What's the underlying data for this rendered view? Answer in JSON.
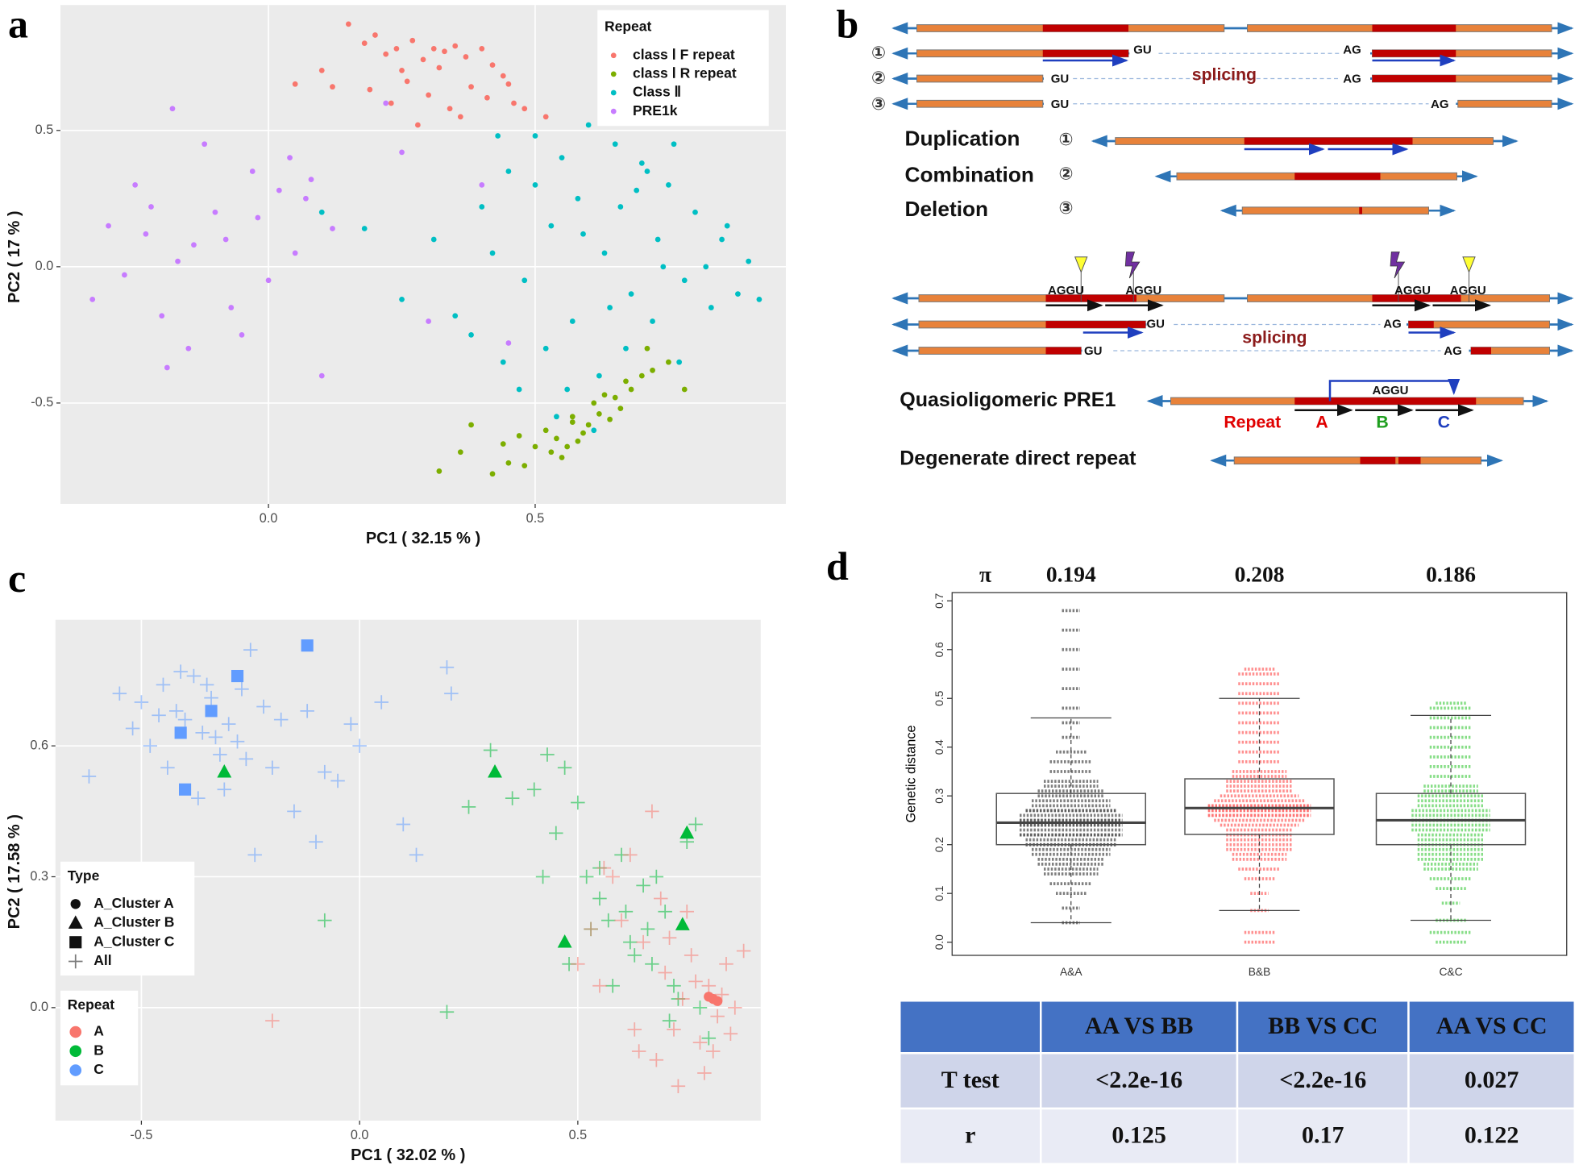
{
  "chart_data": [
    {
      "type": "scatter",
      "panel_label": "a",
      "xlabel": "PC1 ( 32.15 % )",
      "ylabel": "PC2 ( 17 % )",
      "xlim": [
        -0.39,
        0.97
      ],
      "ylim": [
        -0.87,
        0.96
      ],
      "xticks": [
        {
          "value": 0,
          "label": "0.0"
        },
        0.5
      ],
      "yticks": [
        -0.5,
        {
          "value": 0,
          "label": "0.0"
        },
        0.5
      ],
      "grid": true,
      "legend_title": "Repeat",
      "legend": "upper right",
      "series": [
        {
          "name": "class Ⅰ F repeat",
          "color": "#f8766d",
          "shape": "circle",
          "x": [
            0.15,
            0.18,
            0.2,
            0.22,
            0.24,
            0.27,
            0.29,
            0.31,
            0.33,
            0.35,
            0.37,
            0.4,
            0.42,
            0.44,
            0.19,
            0.23,
            0.26,
            0.3,
            0.34,
            0.38,
            0.41,
            0.45,
            0.48,
            0.52,
            0.1,
            0.05,
            0.12,
            0.28,
            0.36,
            0.46,
            0.25,
            0.32
          ],
          "y": [
            0.89,
            0.82,
            0.85,
            0.78,
            0.8,
            0.83,
            0.76,
            0.8,
            0.79,
            0.81,
            0.77,
            0.8,
            0.74,
            0.7,
            0.65,
            0.6,
            0.68,
            0.63,
            0.58,
            0.66,
            0.62,
            0.67,
            0.58,
            0.55,
            0.72,
            0.67,
            0.66,
            0.52,
            0.55,
            0.6,
            0.72,
            0.73
          ]
        },
        {
          "name": "class Ⅰ R repeat",
          "color": "#7cae00",
          "shape": "circle",
          "x": [
            0.32,
            0.36,
            0.38,
            0.42,
            0.45,
            0.47,
            0.5,
            0.52,
            0.54,
            0.55,
            0.57,
            0.58,
            0.6,
            0.61,
            0.63,
            0.64,
            0.66,
            0.68,
            0.7,
            0.72,
            0.75,
            0.78,
            0.56,
            0.59,
            0.62,
            0.65,
            0.53,
            0.48,
            0.44,
            0.67,
            0.71,
            0.57
          ],
          "y": [
            -0.75,
            -0.68,
            -0.58,
            -0.76,
            -0.72,
            -0.62,
            -0.66,
            -0.6,
            -0.63,
            -0.7,
            -0.55,
            -0.64,
            -0.58,
            -0.5,
            -0.47,
            -0.56,
            -0.52,
            -0.45,
            -0.4,
            -0.38,
            -0.35,
            -0.45,
            -0.66,
            -0.61,
            -0.54,
            -0.48,
            -0.68,
            -0.73,
            -0.65,
            -0.42,
            -0.3,
            -0.57
          ]
        },
        {
          "name": "Class Ⅱ",
          "color": "#00bfc4",
          "shape": "circle",
          "x": [
            0.4,
            0.45,
            0.5,
            0.55,
            0.6,
            0.65,
            0.7,
            0.75,
            0.8,
            0.85,
            0.9,
            0.42,
            0.48,
            0.53,
            0.58,
            0.63,
            0.68,
            0.73,
            0.78,
            0.83,
            0.88,
            0.92,
            0.38,
            0.44,
            0.52,
            0.57,
            0.62,
            0.67,
            0.72,
            0.77,
            0.82,
            0.47,
            0.54,
            0.61,
            0.69,
            0.76,
            0.31,
            0.25,
            0.1,
            0.18,
            0.35,
            0.5,
            0.59,
            0.66,
            0.74,
            0.86,
            0.43,
            0.56,
            0.64,
            0.71
          ],
          "y": [
            0.22,
            0.35,
            0.48,
            0.4,
            0.52,
            0.45,
            0.38,
            0.3,
            0.2,
            0.1,
            0.02,
            0.05,
            -0.05,
            0.15,
            0.25,
            0.05,
            -0.1,
            0.1,
            -0.05,
            -0.15,
            -0.1,
            -0.12,
            -0.25,
            -0.35,
            -0.3,
            -0.2,
            -0.4,
            -0.3,
            -0.2,
            -0.35,
            0.0,
            -0.45,
            -0.55,
            -0.6,
            0.28,
            0.45,
            0.1,
            -0.12,
            0.2,
            0.14,
            -0.18,
            0.3,
            0.12,
            0.22,
            0.0,
            0.15,
            0.48,
            -0.45,
            -0.15,
            0.35
          ]
        },
        {
          "name": "PRE1k",
          "color": "#c77cff",
          "shape": "circle",
          "x": [
            -0.33,
            -0.3,
            -0.27,
            -0.25,
            -0.22,
            -0.2,
            -0.18,
            -0.15,
            -0.12,
            -0.1,
            -0.08,
            -0.05,
            -0.03,
            0.0,
            0.02,
            0.05,
            0.08,
            0.1,
            -0.19,
            -0.23,
            -0.14,
            -0.07,
            0.04,
            0.12,
            0.22,
            0.25,
            0.3,
            0.4,
            0.45,
            -0.17,
            -0.02,
            0.07
          ],
          "y": [
            -0.12,
            0.15,
            -0.03,
            0.3,
            0.22,
            -0.18,
            0.58,
            -0.3,
            0.45,
            0.2,
            0.1,
            -0.25,
            0.35,
            -0.05,
            0.28,
            0.05,
            0.32,
            -0.4,
            -0.37,
            0.12,
            0.08,
            -0.15,
            0.4,
            0.14,
            0.6,
            0.42,
            -0.2,
            0.3,
            -0.28,
            0.02,
            0.18,
            0.25
          ]
        }
      ]
    },
    {
      "type": "scatter",
      "panel_label": "c",
      "xlabel": "PC1 ( 32.02 % )",
      "ylabel": "PC2 ( 17.58 % )",
      "xlim": [
        -0.697,
        0.919
      ],
      "ylim": [
        -0.259,
        0.889
      ],
      "xticks": [
        -0.5,
        {
          "value": 0,
          "label": "0.0"
        },
        0.5
      ],
      "yticks": [
        {
          "value": 0,
          "label": "0.0"
        },
        0.3,
        0.6
      ],
      "grid": true,
      "legend": "center left",
      "type_legend": {
        "title": "Type",
        "entries": [
          {
            "name": "A_Cluster A",
            "shape": "circle"
          },
          {
            "name": "A_Cluster B",
            "shape": "triangle"
          },
          {
            "name": "A_Cluster C",
            "shape": "square"
          },
          {
            "name": "All",
            "shape": "cross"
          }
        ]
      },
      "repeat_legend": {
        "title": "Repeat",
        "entries": [
          {
            "name": "A",
            "color": "#f8766d"
          },
          {
            "name": "B",
            "color": "#00ba38"
          },
          {
            "name": "C",
            "color": "#619cff"
          }
        ]
      },
      "series": [
        {
          "color": "#619cff",
          "shape": "cross",
          "x": [
            -0.62,
            -0.55,
            -0.52,
            -0.5,
            -0.48,
            -0.45,
            -0.42,
            -0.4,
            -0.38,
            -0.36,
            -0.34,
            -0.32,
            -0.3,
            -0.28,
            -0.25,
            -0.22,
            -0.2,
            -0.15,
            -0.1,
            -0.05,
            0.0,
            0.05,
            0.1,
            0.2,
            0.21,
            -0.44,
            -0.37,
            -0.33,
            -0.27,
            -0.24,
            -0.18,
            -0.08,
            -0.02,
            0.13,
            -0.46,
            -0.31,
            -0.26,
            -0.12,
            -0.35,
            -0.41
          ],
          "y": [
            0.53,
            0.72,
            0.64,
            0.7,
            0.6,
            0.74,
            0.68,
            0.66,
            0.76,
            0.63,
            0.71,
            0.58,
            0.65,
            0.61,
            0.82,
            0.69,
            0.55,
            0.45,
            0.38,
            0.52,
            0.6,
            0.7,
            0.42,
            0.78,
            0.72,
            0.55,
            0.48,
            0.62,
            0.73,
            0.35,
            0.66,
            0.54,
            0.65,
            0.35,
            0.67,
            0.5,
            0.57,
            0.68,
            0.74,
            0.77
          ]
        },
        {
          "color": "#00ba38",
          "shape": "cross",
          "x": [
            0.3,
            0.35,
            0.4,
            0.43,
            0.45,
            0.47,
            0.5,
            0.52,
            0.55,
            0.57,
            0.6,
            0.62,
            0.65,
            0.67,
            0.7,
            0.72,
            0.75,
            0.78,
            0.8,
            0.48,
            0.53,
            0.58,
            0.63,
            0.68,
            0.73,
            0.77,
            0.25,
            0.2,
            -0.08,
            0.42,
            0.55,
            0.66,
            0.71,
            0.61
          ],
          "y": [
            0.59,
            0.48,
            0.5,
            0.58,
            0.4,
            0.55,
            0.47,
            0.3,
            0.25,
            0.2,
            0.35,
            0.15,
            0.28,
            0.1,
            0.22,
            0.05,
            0.38,
            0.0,
            -0.07,
            0.1,
            0.18,
            0.05,
            0.12,
            0.3,
            0.02,
            0.42,
            0.46,
            -0.01,
            0.2,
            0.3,
            0.32,
            0.18,
            -0.03,
            0.22
          ]
        },
        {
          "color": "#f8766d",
          "shape": "cross",
          "x": [
            0.5,
            0.55,
            0.58,
            0.6,
            0.62,
            0.65,
            0.67,
            0.7,
            0.72,
            0.74,
            0.76,
            0.78,
            0.8,
            0.82,
            0.84,
            0.86,
            0.88,
            0.63,
            0.68,
            0.73,
            0.77,
            0.81,
            0.85,
            0.69,
            0.71,
            0.56,
            0.64,
            0.75,
            0.83,
            -0.2,
            0.53,
            0.79
          ],
          "y": [
            0.1,
            0.05,
            0.3,
            0.2,
            0.35,
            0.15,
            0.45,
            0.08,
            -0.05,
            0.02,
            0.12,
            -0.08,
            0.05,
            -0.02,
            0.1,
            0.0,
            0.13,
            -0.05,
            -0.12,
            -0.18,
            0.06,
            -0.1,
            -0.06,
            0.25,
            0.16,
            0.32,
            -0.1,
            0.22,
            0.03,
            -0.03,
            0.18,
            -0.15
          ]
        },
        {
          "color": "#619cff",
          "shape": "square",
          "x": [
            -0.12,
            -0.28,
            -0.34,
            -0.41,
            -0.4
          ],
          "y": [
            0.83,
            0.76,
            0.68,
            0.63,
            0.5
          ]
        },
        {
          "color": "#00ba38",
          "shape": "triangle",
          "x": [
            -0.31,
            0.31,
            0.75,
            0.74,
            0.47
          ],
          "y": [
            0.54,
            0.54,
            0.4,
            0.19,
            0.15
          ]
        },
        {
          "color": "#f8766d",
          "shape": "circle",
          "x": [
            0.81,
            0.8,
            0.82
          ],
          "y": [
            0.02,
            0.025,
            0.015
          ]
        }
      ]
    },
    {
      "type": "box",
      "panel_label": "d",
      "ylabel": "Genetic distance",
      "categories": [
        "A&A",
        "B&B",
        "C&C"
      ],
      "pi_label": "π",
      "pi": [
        0.194,
        0.208,
        0.186
      ],
      "ylim": [
        -0.027,
        0.717
      ],
      "yticks": [
        {
          "value": 0,
          "label": "0.0"
        },
        0.1,
        0.2,
        0.3,
        0.4,
        0.5,
        0.6,
        0.7
      ],
      "boxes": [
        {
          "color": "#555555",
          "whisker_low": 0.04,
          "q1": 0.2,
          "median": 0.245,
          "q3": 0.305,
          "whisker_high": 0.46,
          "points": [
            0.04,
            0.07,
            0.1,
            0.12,
            0.14,
            0.15,
            0.16,
            0.17,
            0.18,
            0.19,
            0.2,
            0.2,
            0.21,
            0.22,
            0.22,
            0.23,
            0.24,
            0.24,
            0.25,
            0.25,
            0.26,
            0.27,
            0.27,
            0.28,
            0.29,
            0.3,
            0.31,
            0.32,
            0.33,
            0.35,
            0.37,
            0.39,
            0.42,
            0.45,
            0.48,
            0.52,
            0.56,
            0.6,
            0.64,
            0.68
          ]
        },
        {
          "color": "#ff6b6b",
          "whisker_low": 0.065,
          "q1": 0.221,
          "median": 0.275,
          "q3": 0.335,
          "whisker_high": 0.5,
          "points": [
            0.0,
            0.02,
            0.065,
            0.1,
            0.13,
            0.15,
            0.17,
            0.18,
            0.19,
            0.2,
            0.21,
            0.22,
            0.23,
            0.24,
            0.25,
            0.26,
            0.26,
            0.27,
            0.27,
            0.28,
            0.28,
            0.29,
            0.3,
            0.31,
            0.32,
            0.33,
            0.34,
            0.35,
            0.37,
            0.39,
            0.41,
            0.43,
            0.45,
            0.47,
            0.49,
            0.51,
            0.53,
            0.55,
            0.56
          ]
        },
        {
          "color": "#5fd35f",
          "whisker_low": 0.045,
          "q1": 0.2,
          "median": 0.25,
          "q3": 0.305,
          "whisker_high": 0.465,
          "points": [
            0.0,
            0.02,
            0.045,
            0.08,
            0.11,
            0.13,
            0.15,
            0.16,
            0.17,
            0.18,
            0.19,
            0.2,
            0.21,
            0.22,
            0.23,
            0.24,
            0.25,
            0.25,
            0.26,
            0.27,
            0.28,
            0.29,
            0.3,
            0.31,
            0.32,
            0.34,
            0.36,
            0.38,
            0.4,
            0.42,
            0.44,
            0.46,
            0.48,
            0.49
          ]
        }
      ]
    }
  ],
  "diagram_b": {
    "panel_label": "b",
    "gu": "GU",
    "ag": "AG",
    "splicing": "splicing",
    "steps": [
      "①",
      "②",
      "③"
    ],
    "outcomes": [
      "Duplication",
      "Combination",
      "Deletion"
    ],
    "aggu": "AGGU",
    "quasi": "Quasioligomeric PRE1",
    "repeat": "Repeat",
    "units": [
      "A",
      "B",
      "C"
    ],
    "degenerate": "Degenerate direct repeat"
  },
  "table_d": {
    "header": [
      "AA VS BB",
      "BB VS CC",
      "AA VS CC"
    ],
    "rows": [
      [
        "T test",
        "<2.2e-16",
        "<2.2e-16",
        "0.027"
      ],
      [
        "r",
        "0.125",
        "0.17",
        "0.122"
      ]
    ]
  }
}
